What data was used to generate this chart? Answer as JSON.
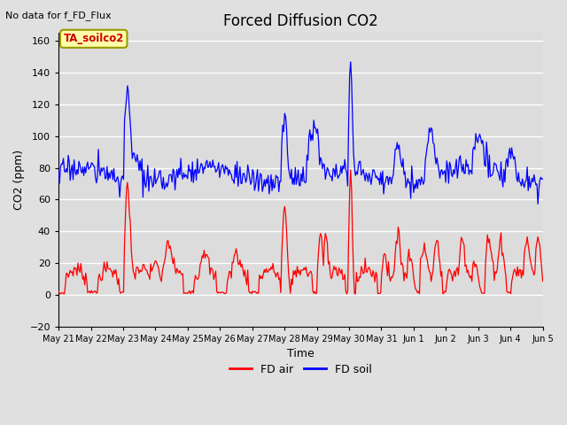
{
  "title": "Forced Diffusion CO2",
  "top_left_text": "No data for f_FD_Flux",
  "annotation_box": "TA_soilco2",
  "ylabel": "CO2 (ppm)",
  "xlabel": "Time",
  "ylim": [
    -20,
    165
  ],
  "yticks": [
    -20,
    0,
    20,
    40,
    60,
    80,
    100,
    120,
    140,
    160
  ],
  "background_color": "#e0e0e0",
  "plot_bg_color": "#dcdcdc",
  "grid_color": "#ffffff",
  "title_fontsize": 12,
  "axis_fontsize": 9,
  "tick_fontsize": 8,
  "legend_labels": [
    "FD air",
    "FD soil"
  ],
  "legend_colors": [
    "red",
    "blue"
  ],
  "fd_air_color": "red",
  "fd_soil_color": "blue",
  "x_tick_labels": [
    "May 21",
    "May 22",
    "May 23",
    "May 24",
    "May 25",
    "May 26",
    "May 27",
    "May 28",
    "May 29",
    "May 30",
    "May 31",
    "Jun 1",
    "Jun 2",
    "Jun 3",
    "Jun 4",
    "Jun 5"
  ]
}
